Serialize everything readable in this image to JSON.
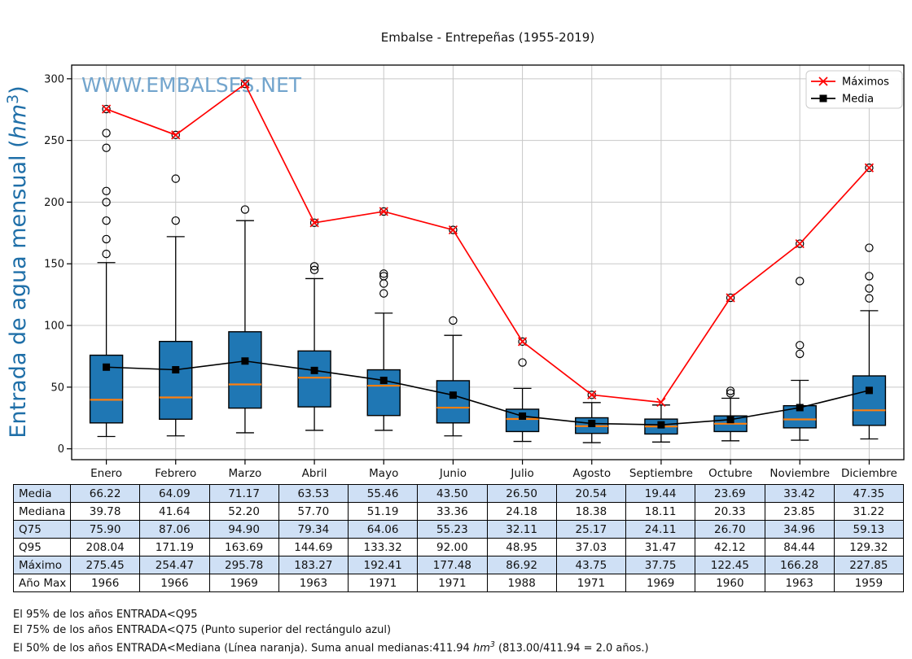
{
  "title": "Embalse - Entrepeñas (1955-2019)",
  "watermark": "WWW.EMBALSES.NET",
  "ylabel": {
    "prefix": "Entrada de agua mensual (",
    "italic": "hm",
    "sup": "3",
    "suffix": ")"
  },
  "legend": [
    {
      "label": "Máximos"
    },
    {
      "label": "Media"
    }
  ],
  "colors": {
    "box_fill": "#1f77b4",
    "median_line": "#ff7f0e",
    "maximos_line": "#ff0000",
    "media_line": "#000000",
    "grid": "#c8c8c8",
    "watermark": "#73a5cd",
    "ylabel": "#1f6fa8",
    "table_highlight": "#cfe0f5"
  },
  "chart_data": {
    "type": "boxplot+line",
    "title": "Embalse - Entrepeñas (1955-2019)",
    "xlabel": "",
    "ylabel": "Entrada de agua mensual (hm3)",
    "categories": [
      "Enero",
      "Febrero",
      "Marzo",
      "Abril",
      "Mayo",
      "Junio",
      "Julio",
      "Agosto",
      "Septiembre",
      "Octubre",
      "Noviembre",
      "Diciembre"
    ],
    "yticks": [
      0,
      50,
      100,
      150,
      200,
      250,
      300
    ],
    "ylim": [
      -8.8,
      311.1
    ],
    "grid": true,
    "legend_position": "upper right",
    "series": [
      {
        "name": "Máximos",
        "marker": "x",
        "color": "#ff0000",
        "values": [
          275.45,
          254.47,
          295.78,
          183.27,
          192.41,
          177.48,
          86.92,
          43.75,
          37.75,
          122.45,
          166.28,
          227.85
        ]
      },
      {
        "name": "Media",
        "marker": "square",
        "color": "#000000",
        "values": [
          66.22,
          64.09,
          71.17,
          63.53,
          55.46,
          43.5,
          26.5,
          20.54,
          19.44,
          23.69,
          33.42,
          47.35
        ]
      }
    ],
    "boxes": {
      "median": [
        39.78,
        41.64,
        52.2,
        57.7,
        51.19,
        33.36,
        24.18,
        18.38,
        18.11,
        20.33,
        23.85,
        31.22
      ],
      "q25": [
        21,
        24,
        33,
        34,
        27,
        21,
        14,
        12.5,
        12,
        14,
        17,
        19
      ],
      "q75": [
        75.9,
        87.06,
        94.9,
        79.34,
        64.06,
        55.23,
        32.11,
        25.17,
        24.11,
        26.7,
        34.96,
        59.13
      ],
      "whisker_low": [
        10,
        10.5,
        13,
        15,
        15,
        10.5,
        6,
        5,
        5.5,
        6.5,
        7,
        8
      ],
      "whisker_high": [
        151,
        172,
        185,
        138,
        110,
        92,
        49,
        37.5,
        35.5,
        41,
        55.5,
        112
      ],
      "outliers": [
        [
          158,
          170,
          185,
          200,
          209,
          244,
          256,
          275.45
        ],
        [
          185,
          219,
          254.47
        ],
        [
          194,
          295.78
        ],
        [
          145,
          148,
          183.27
        ],
        [
          126,
          134,
          140,
          142,
          192.41
        ],
        [
          104,
          177.48
        ],
        [
          70,
          86.92
        ],
        [
          43.75
        ],
        [],
        [
          45,
          47,
          122.45
        ],
        [
          77,
          84,
          136,
          166.28
        ],
        [
          122,
          130,
          140,
          163,
          227.85
        ]
      ]
    }
  },
  "table": {
    "rows": [
      {
        "label": "Media",
        "values": [
          "66.22",
          "64.09",
          "71.17",
          "63.53",
          "55.46",
          "43.50",
          "26.50",
          "20.54",
          "19.44",
          "23.69",
          "33.42",
          "47.35"
        ]
      },
      {
        "label": "Mediana",
        "values": [
          "39.78",
          "41.64",
          "52.20",
          "57.70",
          "51.19",
          "33.36",
          "24.18",
          "18.38",
          "18.11",
          "20.33",
          "23.85",
          "31.22"
        ]
      },
      {
        "label": "Q75",
        "values": [
          "75.90",
          "87.06",
          "94.90",
          "79.34",
          "64.06",
          "55.23",
          "32.11",
          "25.17",
          "24.11",
          "26.70",
          "34.96",
          "59.13"
        ]
      },
      {
        "label": "Q95",
        "values": [
          "208.04",
          "171.19",
          "163.69",
          "144.69",
          "133.32",
          "92.00",
          "48.95",
          "37.03",
          "31.47",
          "42.12",
          "84.44",
          "129.32"
        ]
      },
      {
        "label": "Máximo",
        "values": [
          "275.45",
          "254.47",
          "295.78",
          "183.27",
          "192.41",
          "177.48",
          "86.92",
          "43.75",
          "37.75",
          "122.45",
          "166.28",
          "227.85"
        ]
      },
      {
        "label": "Año Max",
        "values": [
          "1966",
          "1966",
          "1969",
          "1963",
          "1971",
          "1971",
          "1988",
          "1971",
          "1969",
          "1960",
          "1963",
          "1959"
        ]
      }
    ]
  },
  "footnotes": {
    "line1": "El 95% de los años ENTRADA<Q95",
    "line2": "El 75% de los años ENTRADA<Q75 (Punto superior del rectángulo azul)",
    "line3_a": "El 50% de los años ENTRADA<Mediana (Línea naranja). Suma anual medianas:411.94 ",
    "line3_hm": "hm",
    "line3_sup": "3",
    "line3_b": " (813.00/411.94 = 2.0 años.)"
  }
}
